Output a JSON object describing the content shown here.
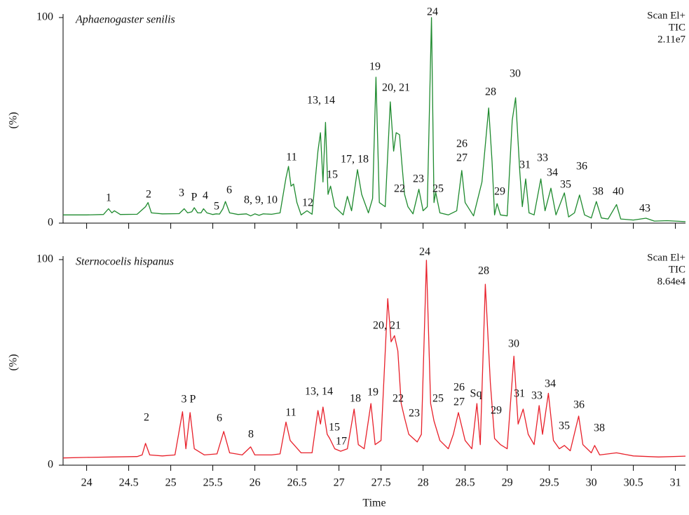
{
  "chart_data": [
    {
      "type": "line",
      "title": "Aphaenogaster senilis",
      "ylabel": "(%)",
      "annotations": [
        "Scan El+",
        "TIC",
        "2.11e7"
      ],
      "xlim": [
        23.72,
        31.12
      ],
      "ylim": [
        0,
        100
      ],
      "yticks": [
        0,
        100
      ],
      "peak_labels": [
        "1",
        "2",
        "3",
        "P",
        "4",
        "5",
        "6",
        "8, 9, 10",
        "11",
        "12",
        "13, 14",
        "15",
        "17, 18",
        "19",
        "20, 21",
        "22",
        "23",
        "24",
        "25",
        "26",
        "27",
        "28",
        "29",
        "30",
        "31",
        "33",
        "34",
        "35",
        "36",
        "38",
        "40",
        "43"
      ],
      "x": [
        23.72,
        24.0,
        24.2,
        24.26,
        24.3,
        24.33,
        24.4,
        24.6,
        24.7,
        24.73,
        24.77,
        24.9,
        25.1,
        25.16,
        25.2,
        25.25,
        25.28,
        25.32,
        25.36,
        25.39,
        25.43,
        25.5,
        25.54,
        25.58,
        25.62,
        25.65,
        25.7,
        25.8,
        25.9,
        25.95,
        26.0,
        26.05,
        26.1,
        26.2,
        26.3,
        26.37,
        26.4,
        26.43,
        26.46,
        26.5,
        26.55,
        26.62,
        26.68,
        26.75,
        26.78,
        26.81,
        26.84,
        26.87,
        26.9,
        26.95,
        27.05,
        27.1,
        27.15,
        27.22,
        27.27,
        27.35,
        27.4,
        27.44,
        27.48,
        27.55,
        27.61,
        27.65,
        27.68,
        27.72,
        27.75,
        27.78,
        27.82,
        27.88,
        27.95,
        28.0,
        28.05,
        28.1,
        28.13,
        28.15,
        28.2,
        28.3,
        28.4,
        28.46,
        28.5,
        28.6,
        28.7,
        28.78,
        28.82,
        28.85,
        28.88,
        28.92,
        29.0,
        29.06,
        29.1,
        29.15,
        29.18,
        29.22,
        29.26,
        29.32,
        29.4,
        29.45,
        29.52,
        29.58,
        29.68,
        29.73,
        29.8,
        29.86,
        29.92,
        30.0,
        30.06,
        30.12,
        30.2,
        30.3,
        30.35,
        30.5,
        30.65,
        30.75,
        30.9,
        31.12
      ],
      "series": [
        {
          "color": "#1e8a2e",
          "values": [
            4,
            4,
            4.2,
            7,
            5,
            6,
            4.2,
            4.3,
            8,
            10,
            5,
            4.5,
            4.6,
            7,
            5,
            5.5,
            7.5,
            5,
            5,
            7,
            5,
            4.2,
            4.5,
            4.4,
            7,
            10.5,
            5,
            4.2,
            4.5,
            3.5,
            4.5,
            3.8,
            4.5,
            4.3,
            5,
            22,
            27.6,
            18,
            19,
            10,
            4,
            6,
            4.3,
            35,
            44,
            20,
            49,
            14,
            18,
            8,
            4,
            13,
            6,
            26,
            14,
            5,
            12,
            71,
            10,
            8,
            59,
            35,
            44,
            43,
            28,
            14,
            8,
            4.5,
            16.5,
            6,
            8,
            100,
            10,
            15,
            5,
            4,
            6,
            25.6,
            10,
            3.5,
            20,
            56,
            30,
            4,
            9.5,
            4,
            3.5,
            50,
            61,
            25,
            8,
            21.5,
            5,
            4,
            21.5,
            6,
            17,
            4,
            14.7,
            3,
            5,
            13.7,
            4,
            2.5,
            10.5,
            2.5,
            2,
            9,
            2,
            1.5,
            2.4,
            1,
            1.2,
            0.7
          ]
        }
      ]
    },
    {
      "type": "line",
      "title": "Sternocoelis hispanus",
      "ylabel": "(%)",
      "xlabel": "Time",
      "annotations": [
        "Scan El+",
        "TIC",
        "8.64e4"
      ],
      "xlim": [
        23.72,
        31.12
      ],
      "ylim": [
        0,
        100
      ],
      "yticks": [
        0,
        100
      ],
      "xticks": [
        24,
        24.5,
        25,
        25.5,
        26,
        26.5,
        27,
        27.5,
        28,
        28.5,
        29,
        29.5,
        30,
        30.5,
        31
      ],
      "peak_labels": [
        "2",
        "3 P",
        "6",
        "8",
        "11",
        "13, 14",
        "15",
        "17",
        "18",
        "19",
        "20, 21",
        "22",
        "23",
        "24",
        "25",
        "26",
        "Sq",
        "27",
        "28",
        "29",
        "30",
        "31",
        "33",
        "34",
        "35",
        "36",
        "38"
      ],
      "x": [
        23.72,
        24.0,
        24.3,
        24.6,
        24.66,
        24.7,
        24.75,
        24.9,
        25.05,
        25.14,
        25.18,
        25.23,
        25.28,
        25.4,
        25.55,
        25.63,
        25.7,
        25.85,
        25.95,
        26.0,
        26.2,
        26.3,
        26.37,
        26.42,
        26.55,
        26.68,
        26.75,
        26.78,
        26.81,
        26.86,
        26.89,
        26.95,
        27.02,
        27.1,
        27.18,
        27.23,
        27.3,
        27.38,
        27.43,
        27.5,
        27.58,
        27.62,
        27.66,
        27.7,
        27.74,
        27.78,
        27.83,
        27.93,
        27.98,
        28.04,
        28.09,
        28.13,
        28.2,
        28.3,
        28.36,
        28.42,
        28.5,
        28.58,
        28.64,
        28.68,
        28.74,
        28.8,
        28.85,
        28.92,
        29.0,
        29.08,
        29.13,
        29.19,
        29.25,
        29.32,
        29.38,
        29.42,
        29.49,
        29.55,
        29.62,
        29.68,
        29.75,
        29.85,
        29.9,
        30.0,
        30.04,
        30.1,
        30.3,
        30.5,
        30.8,
        31.12
      ],
      "series": [
        {
          "color": "#e8202a",
          "values": [
            3.5,
            3.8,
            4,
            4.2,
            5,
            10.6,
            5,
            4.5,
            5,
            26,
            8,
            25.6,
            8,
            5,
            5.5,
            16.4,
            6,
            5,
            8.9,
            5,
            5,
            5.5,
            21,
            12,
            6,
            6,
            26.6,
            20,
            28.3,
            15,
            13,
            8,
            6.8,
            8,
            27.3,
            10,
            8,
            30,
            10,
            12,
            81,
            60,
            63,
            55.6,
            30,
            23,
            15,
            11.3,
            15,
            99.7,
            30,
            21.5,
            12,
            8,
            15,
            25.6,
            12,
            8,
            30,
            10,
            88,
            40,
            13,
            10,
            8,
            53,
            20,
            27.3,
            15,
            10,
            29,
            15,
            35,
            12,
            8,
            9.6,
            7,
            23.9,
            10,
            6,
            9.6,
            5,
            6,
            4.5,
            4,
            4.4
          ]
        }
      ]
    }
  ]
}
